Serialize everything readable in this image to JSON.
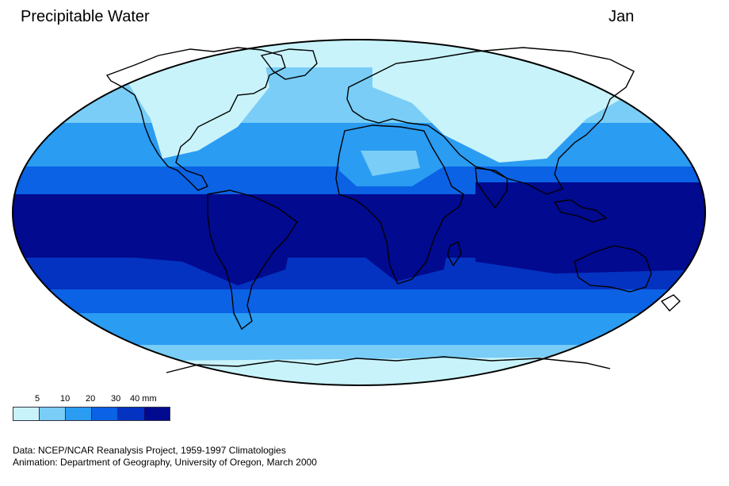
{
  "header": {
    "title": "Precipitable Water",
    "month": "Jan"
  },
  "legend": {
    "labels": [
      "5",
      "10",
      "20",
      "30",
      "40 mm"
    ],
    "colors": [
      "#c8f3fb",
      "#79cdf6",
      "#2a9cf2",
      "#0b62e4",
      "#0433c1",
      "#020a8f"
    ]
  },
  "credits": {
    "data": "Data:  NCEP/NCAR Reanalysis Project, 1959-1997 Climatologies",
    "animation": "Animation:  Department of Geography, University of Oregon, March 2000"
  }
}
